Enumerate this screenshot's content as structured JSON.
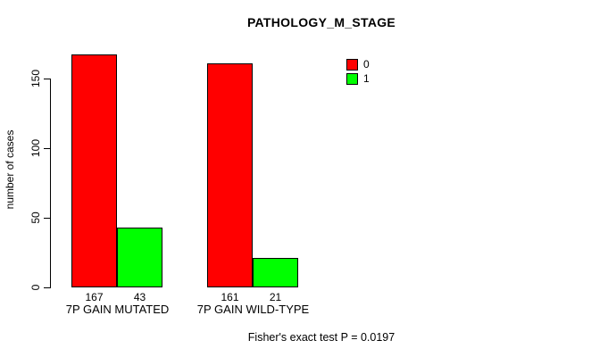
{
  "chart_data": {
    "type": "bar",
    "title": "PATHOLOGY_M_STAGE",
    "xlabel": "",
    "ylabel": "number of cases",
    "categories": [
      "7P GAIN MUTATED",
      "7P GAIN WILD-TYPE"
    ],
    "series": [
      {
        "name": "0",
        "color": "#ff0000",
        "values": [
          167,
          161
        ]
      },
      {
        "name": "1",
        "color": "#00ff00",
        "values": [
          43,
          21
        ]
      }
    ],
    "bar_value_labels": [
      [
        "167",
        "43"
      ],
      [
        "161",
        "21"
      ]
    ],
    "yticks": [
      0,
      50,
      100,
      150
    ],
    "ylim": [
      0,
      167
    ],
    "grid": false,
    "legend_position": "top-right",
    "annotation": "Fisher's exact test P = 0.0197"
  },
  "colors": {
    "background": "#ffffff",
    "axis": "#000000",
    "bar_border": "#000000",
    "series_0": "#ff0000",
    "series_1": "#00ff00"
  }
}
